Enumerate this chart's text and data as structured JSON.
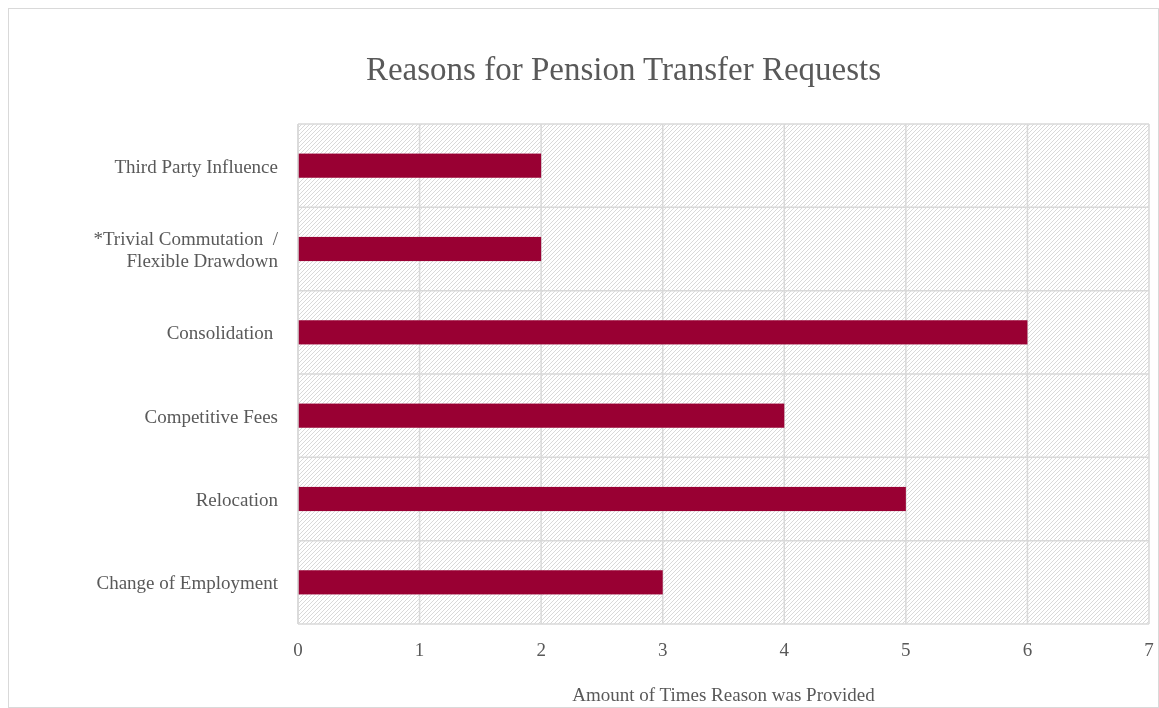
{
  "chart_data": {
    "type": "bar",
    "orientation": "horizontal",
    "title": "Reasons for Pension Transfer Requests",
    "xlabel": "Amount of Times Reason was Provided",
    "categories": [
      "Third Party Influence",
      "*Trivial Commutation  /\nFlexible Drawdown",
      "Consolidation ",
      "Competitive Fees",
      "Relocation",
      "Change of Employment"
    ],
    "values": [
      2,
      2,
      6,
      4,
      5,
      3
    ],
    "color": "#990033",
    "xlim": [
      0,
      7
    ],
    "xticks": [
      0,
      1,
      2,
      3,
      4,
      5,
      6,
      7
    ],
    "grid": true
  }
}
